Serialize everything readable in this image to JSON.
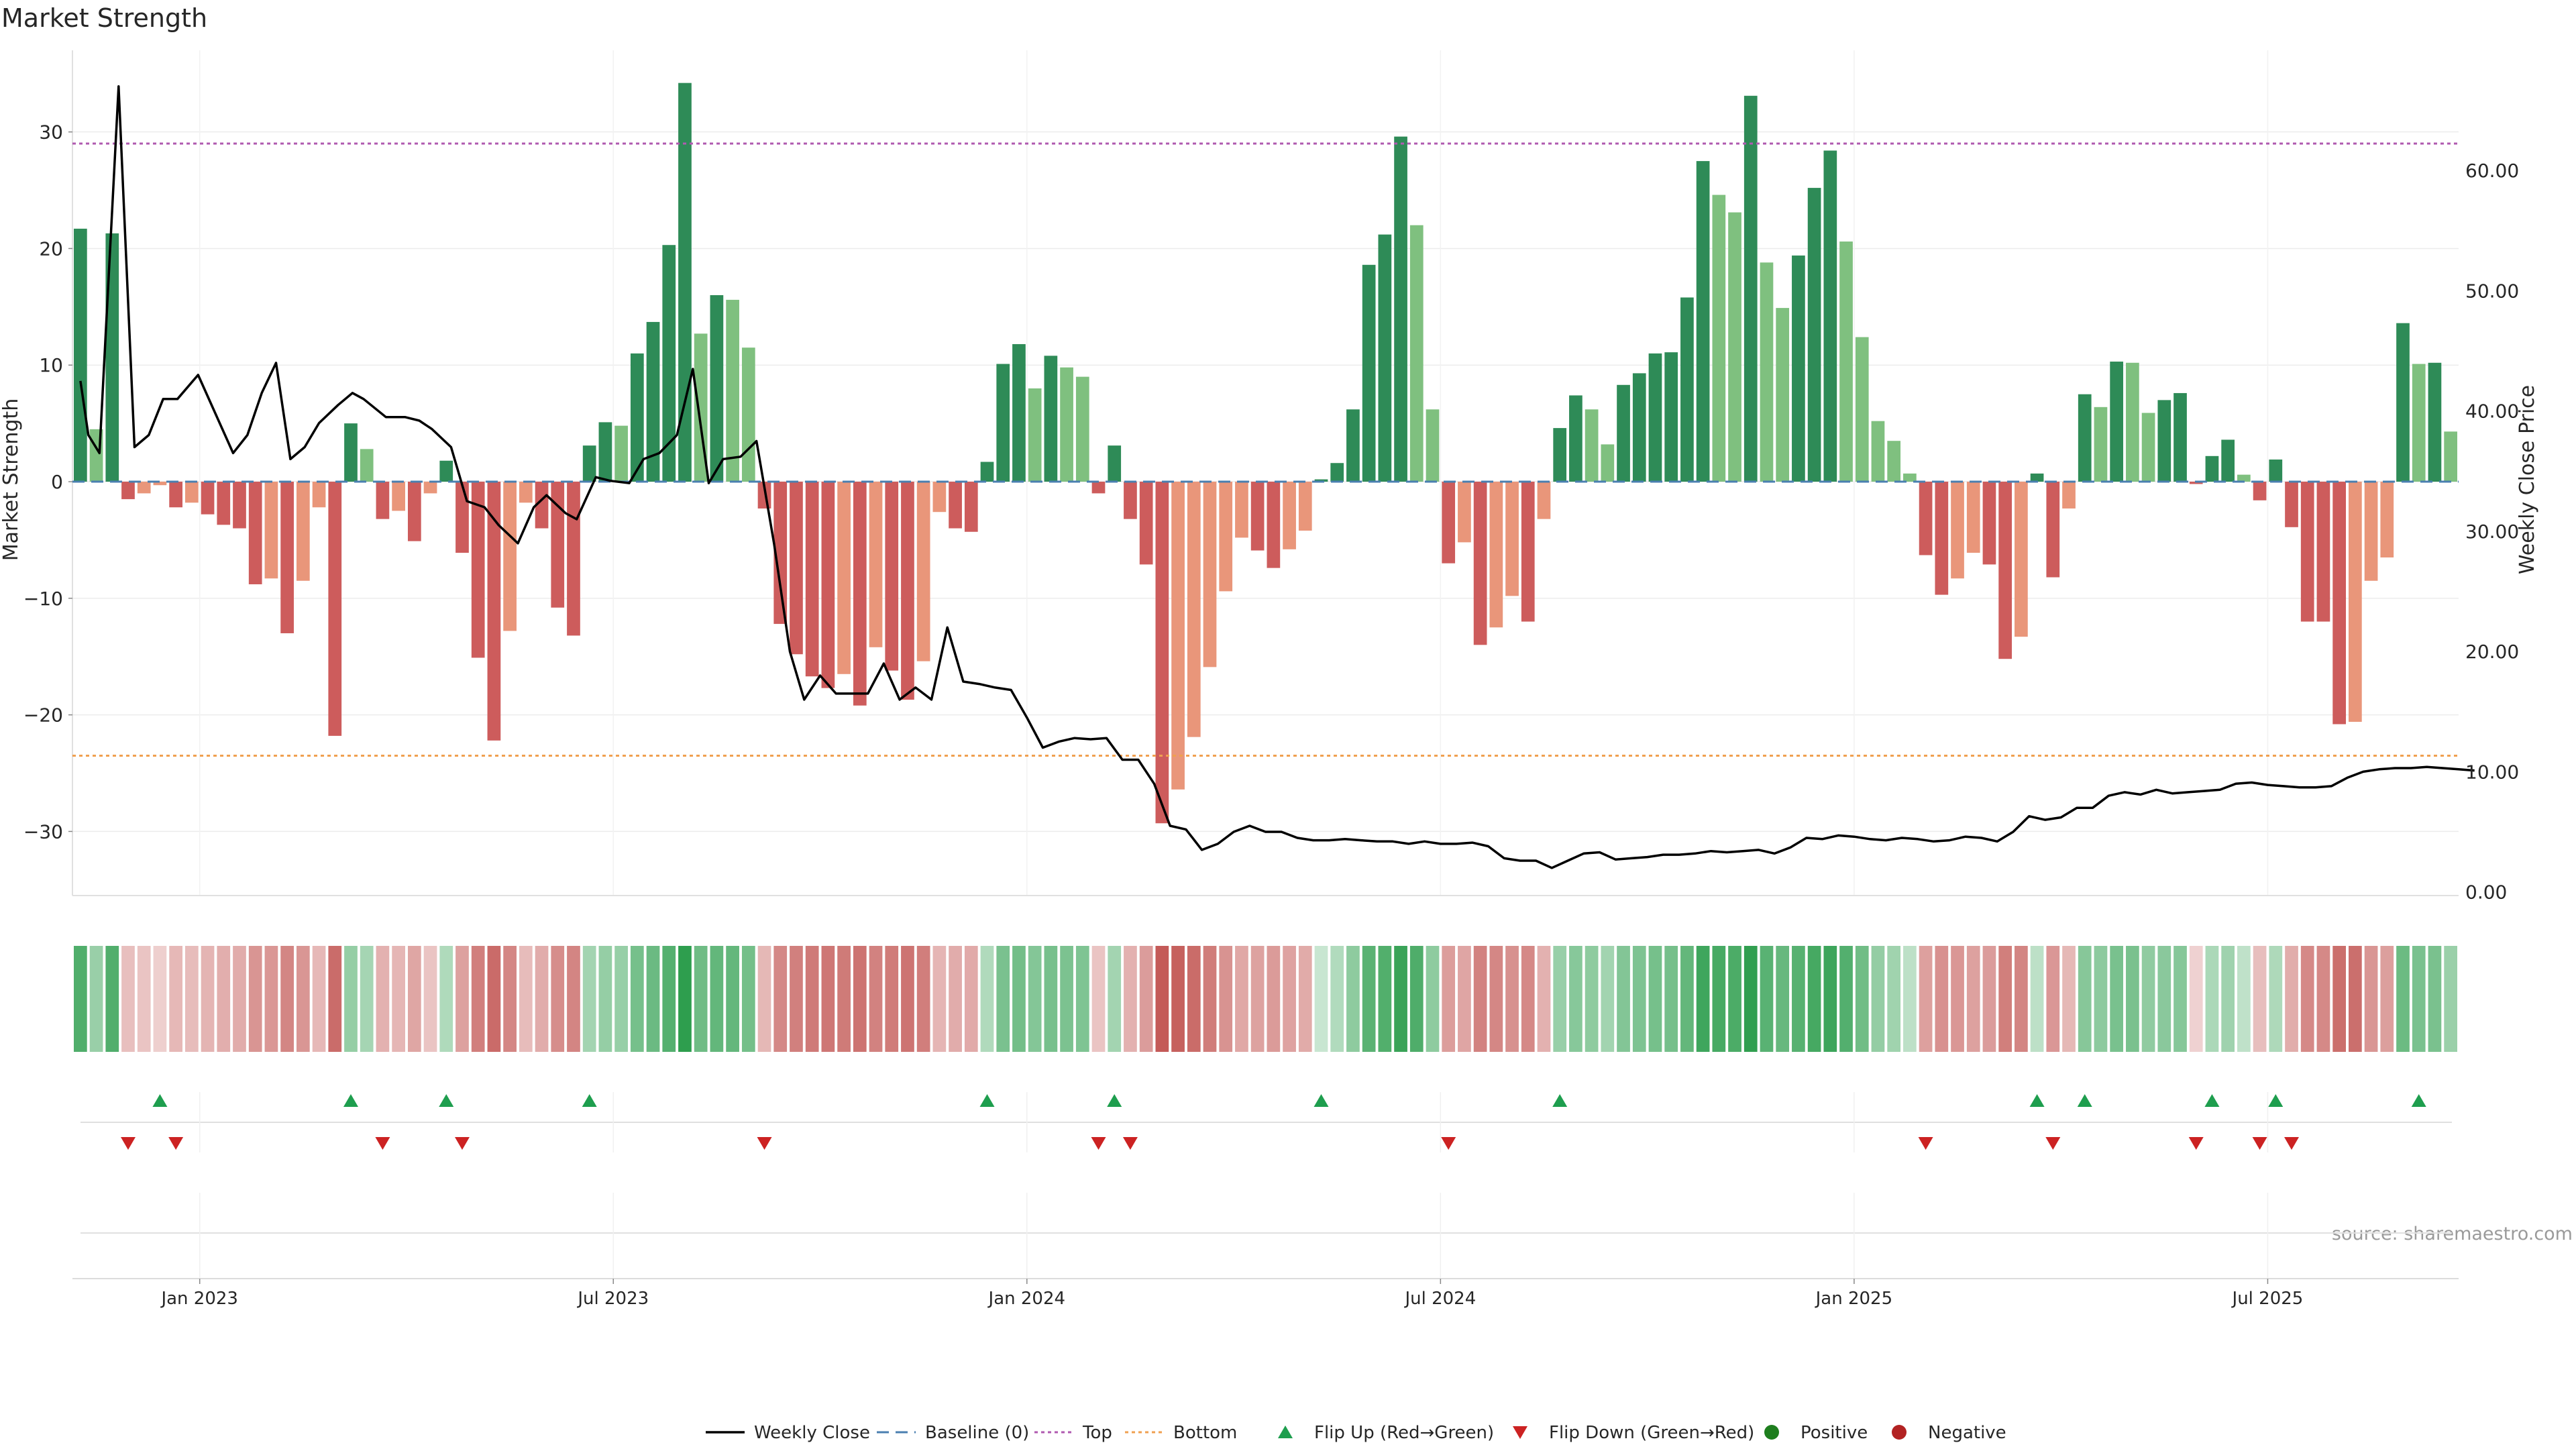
{
  "chart_data": {
    "type": "bar",
    "title": "Market Strength",
    "ylabel": "Market Strength",
    "y2label": "Weekly Close Price",
    "ylim": [
      -35.5,
      37
    ],
    "y2lim": [
      -0.3,
      70
    ],
    "yticks": [
      30,
      20,
      10,
      0,
      -10,
      -20,
      -30
    ],
    "yticklabels": [
      "30",
      "20",
      "10",
      "0",
      "−10",
      "−20",
      "−30"
    ],
    "y2ticks": [
      60,
      50,
      40,
      30,
      20,
      10,
      0
    ],
    "y2ticklabels": [
      "60.00",
      "50.00",
      "40.00",
      "30.00",
      "20.00",
      "10.00",
      "0.00"
    ],
    "xticklabels": [
      "Jan 2023",
      "Jul 2023",
      "Jan 2024",
      "Jul 2024",
      "Jan 2025",
      "Jul 2025"
    ],
    "top_line": 29,
    "bottom_line": -23.5,
    "grid": true,
    "source": "source: sharemaestro.com",
    "colors": {
      "strong_up": "#2e8b57",
      "weak_up": "#7fc07f",
      "strong_down": "#cd5c5c",
      "weak_down": "#e9967a",
      "top": "#b05ab0",
      "bottom": "#f0a050",
      "baseline": "#4a7fb0",
      "flip_up": "#1e9e4e",
      "flip_down": "#cc2222",
      "positive": "#1e7e1e",
      "negative": "#b22222"
    },
    "bars": [
      21.7,
      4.5,
      21.3,
      -1.5,
      -1,
      -0.3,
      -2.2,
      -1.8,
      -2.8,
      -3.7,
      -4,
      -8.8,
      -8.3,
      -13,
      -8.5,
      -2.2,
      -21.8,
      5,
      2.8,
      -3.2,
      -2.5,
      -5.1,
      -1,
      1.8,
      -6.1,
      -15.1,
      -22.2,
      -12.8,
      -1.8,
      -4,
      -10.8,
      -13.2,
      3.1,
      5.1,
      4.8,
      11,
      13.7,
      20.3,
      34.2,
      12.7,
      16,
      15.6,
      11.5,
      -2.3,
      -12.2,
      -14.8,
      -16.7,
      -17.7,
      -16.5,
      -19.2,
      -14.2,
      -16.2,
      -18.7,
      -15.4,
      -2.6,
      -4,
      -4.3,
      1.7,
      10.1,
      11.8,
      8,
      10.8,
      9.8,
      9,
      -1,
      3.1,
      -3.2,
      -7.1,
      -29.3,
      -26.4,
      -21.9,
      -15.9,
      -9.4,
      -4.8,
      -5.9,
      -7.4,
      -5.8,
      -4.2,
      0.2,
      1.6,
      6.2,
      18.6,
      21.2,
      29.6,
      22,
      6.2,
      -7,
      -5.2,
      -14,
      -12.5,
      -9.8,
      -12,
      -3.2,
      4.6,
      7.4,
      6.2,
      3.2,
      8.3,
      9.3,
      11,
      11.1,
      15.8,
      27.5,
      24.6,
      23.1,
      33.1,
      18.8,
      14.9,
      19.4,
      25.2,
      28.4,
      20.6,
      12.4,
      5.2,
      3.5,
      0.7,
      -6.3,
      -9.7,
      -8.3,
      -6.1,
      -7.1,
      -15.2,
      -13.3,
      0.7,
      -8.2,
      -2.3,
      7.5,
      6.4,
      10.3,
      10.2,
      5.9,
      7,
      7.6,
      -0.2,
      2.2,
      3.6,
      0.6,
      -1.6,
      1.9,
      -3.9,
      -12,
      -12,
      -20.8,
      -20.6,
      -8.5,
      -6.5,
      13.6,
      10.1,
      10.2,
      4.3
    ],
    "flip_up_weeks": [
      5,
      17,
      23,
      32,
      57,
      65,
      78,
      93,
      123,
      126,
      134,
      138,
      147
    ],
    "flip_down_weeks": [
      3,
      6,
      19,
      24,
      43,
      64,
      66,
      86,
      116,
      124,
      133,
      137,
      139
    ],
    "close_points": [
      [
        0,
        42.5
      ],
      [
        0.5,
        38
      ],
      [
        1.2,
        36.5
      ],
      [
        2.4,
        67
      ],
      [
        3.4,
        37
      ],
      [
        4.3,
        38
      ],
      [
        5.2,
        41
      ],
      [
        6.1,
        41
      ],
      [
        7.4,
        43
      ],
      [
        9.6,
        36.5
      ],
      [
        10.5,
        38
      ],
      [
        11.4,
        41.5
      ],
      [
        12.3,
        44
      ],
      [
        13.2,
        36
      ],
      [
        14.1,
        37
      ],
      [
        15,
        39
      ],
      [
        16.2,
        40.5
      ],
      [
        17.1,
        41.5
      ],
      [
        17.8,
        41
      ],
      [
        19.2,
        39.5
      ],
      [
        20.4,
        39.5
      ],
      [
        21.3,
        39.2
      ],
      [
        22.1,
        38.5
      ],
      [
        23.3,
        37
      ],
      [
        24.3,
        32.5
      ],
      [
        25.4,
        32
      ],
      [
        26.3,
        30.5
      ],
      [
        27.5,
        29
      ],
      [
        28.5,
        32
      ],
      [
        29.3,
        33
      ],
      [
        30.5,
        31.5
      ],
      [
        31.2,
        31
      ],
      [
        32.4,
        34.5
      ],
      [
        33.3,
        34.2
      ],
      [
        34.5,
        34
      ],
      [
        35.4,
        36
      ],
      [
        36.4,
        36.5
      ],
      [
        37.5,
        38
      ],
      [
        38.5,
        43.5
      ],
      [
        39.5,
        34
      ],
      [
        40.4,
        36
      ],
      [
        41.5,
        36.2
      ],
      [
        42.5,
        37.5
      ],
      [
        43.6,
        29
      ],
      [
        44.6,
        20
      ],
      [
        45.5,
        16
      ],
      [
        46.5,
        18
      ],
      [
        47.5,
        16.5
      ],
      [
        48.5,
        16.5
      ],
      [
        49.5,
        16.5
      ],
      [
        50.5,
        19
      ],
      [
        51.5,
        16
      ],
      [
        52.5,
        17
      ],
      [
        53.5,
        16
      ],
      [
        54.5,
        22
      ],
      [
        55.5,
        17.5
      ],
      [
        56.5,
        17.3
      ],
      [
        57.5,
        17
      ],
      [
        58.5,
        16.8
      ],
      [
        59.5,
        14.5
      ],
      [
        60.5,
        12
      ],
      [
        61.5,
        12.5
      ],
      [
        62.5,
        12.8
      ],
      [
        63.5,
        12.7
      ],
      [
        64.5,
        12.8
      ],
      [
        65.5,
        11
      ],
      [
        66.5,
        11
      ],
      [
        67.5,
        9
      ],
      [
        68.5,
        5.5
      ],
      [
        69.5,
        5.2
      ],
      [
        70.5,
        3.5
      ],
      [
        71.5,
        4
      ],
      [
        72.5,
        5
      ],
      [
        73.5,
        5.5
      ],
      [
        74.5,
        5
      ],
      [
        75.5,
        5
      ],
      [
        76.5,
        4.5
      ],
      [
        77.5,
        4.3
      ],
      [
        78.5,
        4.3
      ],
      [
        79.5,
        4.4
      ],
      [
        80.5,
        4.3
      ],
      [
        81.5,
        4.2
      ],
      [
        82.5,
        4.2
      ],
      [
        83.5,
        4
      ],
      [
        84.5,
        4.2
      ],
      [
        85.5,
        4
      ],
      [
        86.5,
        4
      ],
      [
        87.5,
        4.1
      ],
      [
        88.5,
        3.8
      ],
      [
        89.5,
        2.8
      ],
      [
        90.5,
        2.6
      ],
      [
        91.5,
        2.6
      ],
      [
        92.5,
        2
      ],
      [
        93.5,
        2.6
      ],
      [
        94.5,
        3.2
      ],
      [
        95.5,
        3.3
      ],
      [
        96.5,
        2.7
      ],
      [
        97.5,
        2.8
      ],
      [
        98.5,
        2.9
      ],
      [
        99.5,
        3.1
      ],
      [
        100.5,
        3.1
      ],
      [
        101.5,
        3.2
      ],
      [
        102.5,
        3.4
      ],
      [
        103.5,
        3.3
      ],
      [
        104.5,
        3.4
      ],
      [
        105.5,
        3.5
      ],
      [
        106.5,
        3.2
      ],
      [
        107.5,
        3.7
      ],
      [
        108.5,
        4.5
      ],
      [
        109.5,
        4.4
      ],
      [
        110.5,
        4.7
      ],
      [
        111.5,
        4.6
      ],
      [
        112.5,
        4.4
      ],
      [
        113.5,
        4.3
      ],
      [
        114.5,
        4.5
      ],
      [
        115.5,
        4.4
      ],
      [
        116.5,
        4.2
      ],
      [
        117.5,
        4.3
      ],
      [
        118.5,
        4.6
      ],
      [
        119.5,
        4.5
      ],
      [
        120.5,
        4.2
      ],
      [
        121.5,
        5
      ],
      [
        122.5,
        6.3
      ],
      [
        123.5,
        6
      ],
      [
        124.5,
        6.2
      ],
      [
        125.5,
        7
      ],
      [
        126.5,
        7
      ],
      [
        127.5,
        8
      ],
      [
        128.5,
        8.3
      ],
      [
        129.5,
        8.1
      ],
      [
        130.5,
        8.5
      ],
      [
        131.5,
        8.2
      ],
      [
        132.5,
        8.3
      ],
      [
        133.5,
        8.4
      ],
      [
        134.5,
        8.5
      ],
      [
        135.5,
        9
      ],
      [
        136.5,
        9.1
      ],
      [
        137.5,
        8.9
      ],
      [
        138.5,
        8.8
      ],
      [
        139.5,
        8.7
      ],
      [
        140.5,
        8.7
      ],
      [
        141.5,
        8.8
      ],
      [
        142.5,
        9.5
      ],
      [
        143.5,
        10
      ],
      [
        144.5,
        10.2
      ],
      [
        145.5,
        10.3
      ],
      [
        146.5,
        10.3
      ],
      [
        147.5,
        10.4
      ],
      [
        148.5,
        10.3
      ],
      [
        149.5,
        10.2
      ],
      [
        150.5,
        10.1
      ]
    ],
    "legend": [
      "Weekly Close",
      "Baseline (0)",
      "Top",
      "Bottom",
      "Flip Up (Red→Green)",
      "Flip Down (Green→Red)",
      "Positive",
      "Negative"
    ]
  }
}
